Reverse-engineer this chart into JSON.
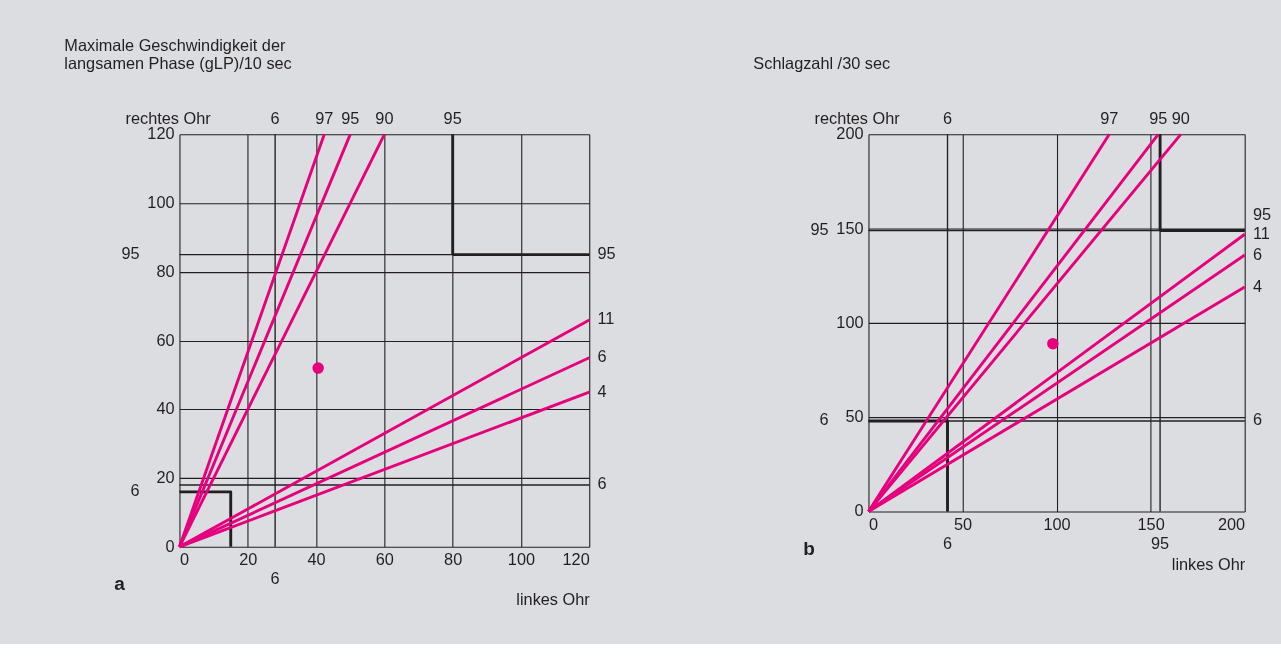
{
  "chart_data": [
    {
      "type": "line",
      "title": "Maximale Geschwindigkeit der\nlangsamen Phase (gLP)/10 sec",
      "xlabel": "linkes Ohr",
      "ylabel": "rechtes Ohr",
      "annotations": [
        "a",
        {
          "text": "6",
          "x": 28,
          "y": 120
        },
        {
          "text": "6",
          "x": 28,
          "y": 0
        },
        {
          "text": "6",
          "x": 0,
          "y": 16
        },
        {
          "text": "95",
          "x": 0,
          "y": 85
        },
        {
          "text": "6",
          "x": 120,
          "y": 18
        }
      ],
      "xlim": [
        0,
        120
      ],
      "ylim": [
        0,
        120
      ],
      "grid": true,
      "xticks": [
        0,
        20,
        40,
        60,
        80,
        100,
        120
      ],
      "yticks": [
        0,
        20,
        40,
        60,
        80,
        100,
        120
      ],
      "ref_lines": [
        {
          "axis": "x",
          "value": 28,
          "color": "#231f20"
        },
        {
          "axis": "y",
          "value": 18,
          "color": "#231f20"
        },
        {
          "axis": "y",
          "value": 85,
          "color": "#231f20"
        }
      ],
      "series": [
        {
          "color": "#231f20",
          "x": [
            0,
            15,
            15
          ],
          "values": [
            16,
            16,
            0
          ]
        },
        {
          "name": "95",
          "color": "#231f20",
          "x": [
            80,
            80
          ],
          "values": [
            85,
            120
          ]
        },
        {
          "name": "95",
          "color": "#231f20",
          "x": [
            80,
            120
          ],
          "values": [
            85,
            85
          ]
        },
        {
          "name": "97",
          "color": "#e6007e",
          "x": [
            0,
            42.4
          ],
          "values": [
            0,
            120
          ]
        },
        {
          "name": "95",
          "color": "#e6007e",
          "x": [
            0,
            50
          ],
          "values": [
            0,
            120
          ]
        },
        {
          "name": "90",
          "color": "#e6007e",
          "x": [
            0,
            60
          ],
          "values": [
            0,
            120
          ]
        },
        {
          "name": "11",
          "color": "#e6007e",
          "x": [
            0,
            120
          ],
          "values": [
            0,
            66
          ]
        },
        {
          "name": "6",
          "color": "#e6007e",
          "x": [
            0,
            120
          ],
          "values": [
            0,
            55
          ]
        },
        {
          "name": "4",
          "color": "#e6007e",
          "x": [
            0,
            120
          ],
          "values": [
            0,
            45
          ]
        },
        {
          "type": "scatter",
          "marker": "circle",
          "color": "#e6007e",
          "x": [
            40.6
          ],
          "values": [
            52
          ]
        }
      ]
    },
    {
      "type": "line",
      "title": "Schlagzahl /30 sec",
      "xlabel": "linkes Ohr",
      "ylabel": "rechtes Ohr",
      "annotations": [
        "b",
        {
          "text": "6",
          "x": 42,
          "y": 200
        },
        {
          "text": "6",
          "x": 42,
          "y": 0
        },
        {
          "text": "95",
          "x": 155,
          "y": 0
        },
        {
          "text": "6",
          "x": 0,
          "y": 48
        },
        {
          "text": "95",
          "x": 0,
          "y": 149
        },
        {
          "text": "6",
          "x": 200,
          "y": 48
        },
        {
          "text": "95",
          "x": 200,
          "y": 149
        }
      ],
      "xlim": [
        0,
        200
      ],
      "ylim": [
        0,
        200
      ],
      "grid": true,
      "xticks": [
        0,
        50,
        100,
        150,
        200
      ],
      "yticks": [
        0,
        50,
        100,
        150,
        200
      ],
      "ref_lines": [
        {
          "axis": "x",
          "value": 42,
          "color": "#231f20"
        },
        {
          "axis": "x",
          "value": 155,
          "color": "#231f20"
        },
        {
          "axis": "y",
          "value": 48,
          "color": "#231f20"
        },
        {
          "axis": "y",
          "value": 149,
          "color": "#231f20"
        }
      ],
      "series": [
        {
          "color": "#231f20",
          "x": [
            0,
            42,
            42
          ],
          "values": [
            48,
            48,
            0
          ]
        },
        {
          "color": "#231f20",
          "x": [
            155,
            155
          ],
          "values": [
            149,
            200
          ]
        },
        {
          "color": "#231f20",
          "x": [
            155,
            200
          ],
          "values": [
            149,
            149
          ]
        },
        {
          "name": "97",
          "color": "#e6007e",
          "x": [
            0,
            128
          ],
          "values": [
            0,
            200
          ]
        },
        {
          "name": "95",
          "color": "#e6007e",
          "x": [
            0,
            154
          ],
          "values": [
            0,
            200
          ]
        },
        {
          "name": "90",
          "color": "#e6007e",
          "x": [
            0,
            166
          ],
          "values": [
            0,
            200
          ]
        },
        {
          "name": "11",
          "color": "#e6007e",
          "x": [
            0,
            200
          ],
          "values": [
            0,
            147
          ]
        },
        {
          "name": "6",
          "color": "#e6007e",
          "x": [
            0,
            200
          ],
          "values": [
            0,
            136
          ]
        },
        {
          "name": "4",
          "color": "#e6007e",
          "x": [
            0,
            200
          ],
          "values": [
            0,
            119
          ]
        },
        {
          "type": "scatter",
          "marker": "circle",
          "color": "#e6007e",
          "x": [
            98
          ],
          "values": [
            89
          ]
        }
      ]
    }
  ]
}
